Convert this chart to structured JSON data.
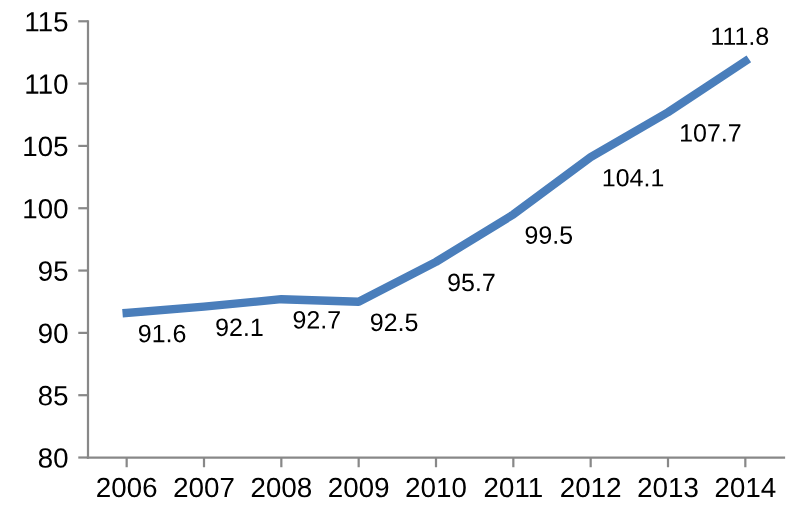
{
  "chart_data": {
    "type": "line",
    "categories": [
      "2006",
      "2007",
      "2008",
      "2009",
      "2010",
      "2011",
      "2012",
      "2013",
      "2014"
    ],
    "series": [
      {
        "color": "#4a7ebb",
        "values": [
          91.6,
          92.1,
          92.7,
          92.5,
          95.7,
          99.5,
          104.1,
          107.7,
          111.8
        ]
      }
    ],
    "ylim": [
      80,
      115
    ],
    "yticks": [
      80,
      85,
      90,
      95,
      100,
      105,
      110,
      115
    ],
    "grid": false,
    "legend": false,
    "marker": "none",
    "line_style": "solid",
    "data_labels": true
  }
}
